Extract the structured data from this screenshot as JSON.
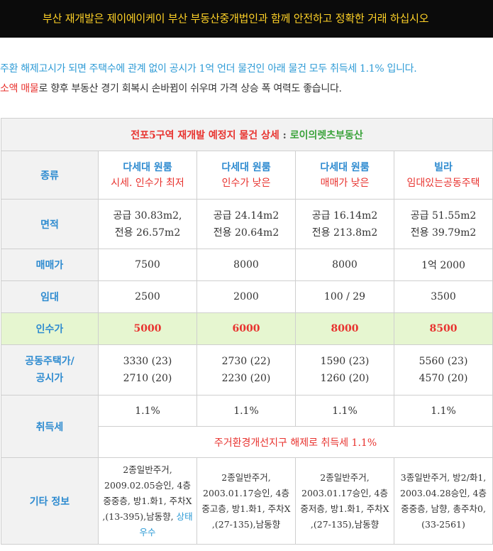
{
  "banner": "부산 재개발은 제이에이케이 부산 부동산중개법인과 함께 안전하고 정확한 거래 하십시오",
  "intro": {
    "line1": "주환 해제고시가 되면 주택수에 관계 없이 공시가 1억 언더 물건인 아래 물건 모두 취득세 1.1% 입니다.",
    "line2_red": "소액 매물",
    "line2_rest": "로 향후 부동산 경기 회복시 손바뀜이 쉬우며 가격 상승 폭 여력도 좋습니다."
  },
  "table": {
    "title_red": "전포5구역 재개발 예정지 물건 상세",
    "title_sep": " : ",
    "title_green": "로이의렛츠부동산",
    "row_labels": {
      "type": "종류",
      "area": "면적",
      "sale": "매매가",
      "lease": "임대",
      "takeover": "인수가",
      "public_price_1": "공동주택가/",
      "public_price_2": "공시가",
      "acq_tax": "취득세",
      "etc": "기타 정보"
    },
    "columns": [
      {
        "type_name": "다세대 원룸",
        "type_note": "시세. 인수가 최저",
        "area_supply": "공급 30.83m2,",
        "area_exclusive": "전용 26.57m2",
        "sale": "7500",
        "lease": "2500",
        "takeover": "5000",
        "public1": "3330 (23)",
        "public2": "2710 (20)",
        "acq_tax": "1.1%",
        "etc_main": "2종일반주거, 2009.02.05승인, 4층중중층, 방1.화1, 주차X ,(13-395),남동향, ",
        "etc_blue": "상태 우수"
      },
      {
        "type_name": "다세대 원룸",
        "type_note": "인수가 낮은",
        "area_supply": "공급 24.14m2",
        "area_exclusive": "전용 20.64m2",
        "sale": "8000",
        "lease": "2000",
        "takeover": "6000",
        "public1": "2730 (22)",
        "public2": "2230 (20)",
        "acq_tax": "1.1%",
        "etc_main": "2종일반주거, 2003.01.17승인, 4층 중고층, 방1.화1, 주차X ,(27-135),남동향",
        "etc_blue": ""
      },
      {
        "type_name": "다세대 원룸",
        "type_note": "매매가 낮은",
        "area_supply": "공급 16.14m2",
        "area_exclusive": "전용 213.8m2",
        "sale": "8000",
        "lease": "100 / 29",
        "takeover": "8000",
        "public1": "1590 (23)",
        "public2": "1260 (20)",
        "acq_tax": "1.1%",
        "etc_main": "2종일반주거, 2003.01.17승인, 4층 중저층, 방1.화1, 주차X ,(27-135),남동향",
        "etc_blue": ""
      },
      {
        "type_name": "빌라",
        "type_note": "임대있는공동주택",
        "area_supply": "공급 51.55m2",
        "area_exclusive": "전용 39.79m2",
        "sale": "1억 2000",
        "lease": "3500",
        "takeover": "8500",
        "public1": "5560 (23)",
        "public2": "4570 (20)",
        "acq_tax": "1.1%",
        "etc_main": "3종일반주거, 방2/화1, 2003.04.28승인, 4층중중층, 남향, 총주차0, (33-2561)",
        "etc_blue": ""
      }
    ],
    "acq_tax_note": "주거환경개선지구 해제로 취득세 1.1%"
  },
  "colors": {
    "banner_bg": "#0b0b0b",
    "banner_text": "#ffd227",
    "accent_blue": "#2e8bd0",
    "accent_red": "#e8332f",
    "accent_green": "#3aa33a",
    "highlight_row": "#e6f6d0"
  }
}
